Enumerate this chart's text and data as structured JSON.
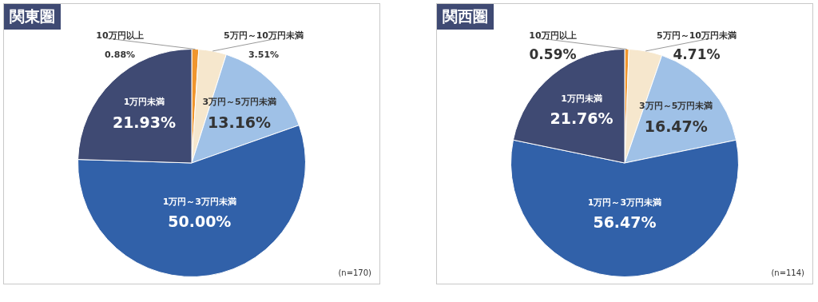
{
  "chart_data": [
    {
      "type": "pie",
      "title": "関東圏",
      "categories": [
        "10万円以上",
        "5万円～10万円未満",
        "3万円～5万円未満",
        "1万円～3万円未満",
        "1万円未満"
      ],
      "values": [
        0.88,
        3.51,
        13.16,
        50.0,
        21.93
      ],
      "value_labels": [
        "0.88%",
        "3.51%",
        "13.16%",
        "50.00%",
        "21.93%"
      ],
      "colors": [
        "#f0962e",
        "#f6e7cd",
        "#9fc1e7",
        "#3161a9",
        "#3f4a73"
      ],
      "annotations": [
        "(n=170)"
      ],
      "legend": false
    },
    {
      "type": "pie",
      "title": "関西圏",
      "categories": [
        "10万円以上",
        "5万円～10万円未満",
        "3万円～5万円未満",
        "1万円～3万円未満",
        "1万円未満"
      ],
      "values": [
        0.59,
        4.71,
        16.47,
        56.47,
        21.76
      ],
      "value_labels": [
        "0.59%",
        "4.71%",
        "16.47%",
        "56.47%",
        "21.76%"
      ],
      "colors": [
        "#f0962e",
        "#f6e7cd",
        "#9fc1e7",
        "#3161a9",
        "#3f4a73"
      ],
      "annotations": [
        "(n=114)"
      ],
      "legend": false
    }
  ]
}
